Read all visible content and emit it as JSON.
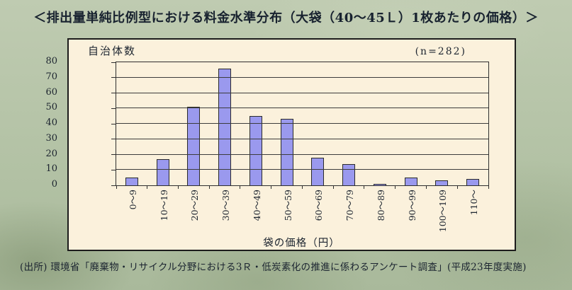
{
  "title": "＜排出量単純比例型における料金水準分布（大袋（40～45Ｌ）1枚あたりの価格）＞",
  "source": "(出所) 環境省「廃棄物・リサイクル分野における3Ｒ・低炭素化の推進に係わるアンケート調査」(平成23年度実施)",
  "chart_data": {
    "type": "bar",
    "title": "排出量単純比例型における料金水準分布（大袋（40～45Ｌ）1枚あたりの価格）",
    "ylabel": "自治体数",
    "xlabel": "袋の価格（円）",
    "annotation": "(n=282)",
    "categories": [
      "0～9",
      "10～19",
      "20～29",
      "30～39",
      "40～49",
      "50～59",
      "60～69",
      "70～79",
      "80～89",
      "90～99",
      "100～109",
      "110～"
    ],
    "values": [
      5,
      17,
      51,
      76,
      45,
      43,
      18,
      14,
      1,
      5,
      3,
      4
    ],
    "ylim": [
      0,
      80
    ],
    "ytick_step": 10,
    "grid": true,
    "legend_position": "none",
    "colors": {
      "bar_fill": "#9a99ee",
      "bar_border": "#2b2b2b",
      "plot_bg": "#fbf1dc",
      "grid_line": "#3c3c3c",
      "text": "#1d2530"
    }
  }
}
